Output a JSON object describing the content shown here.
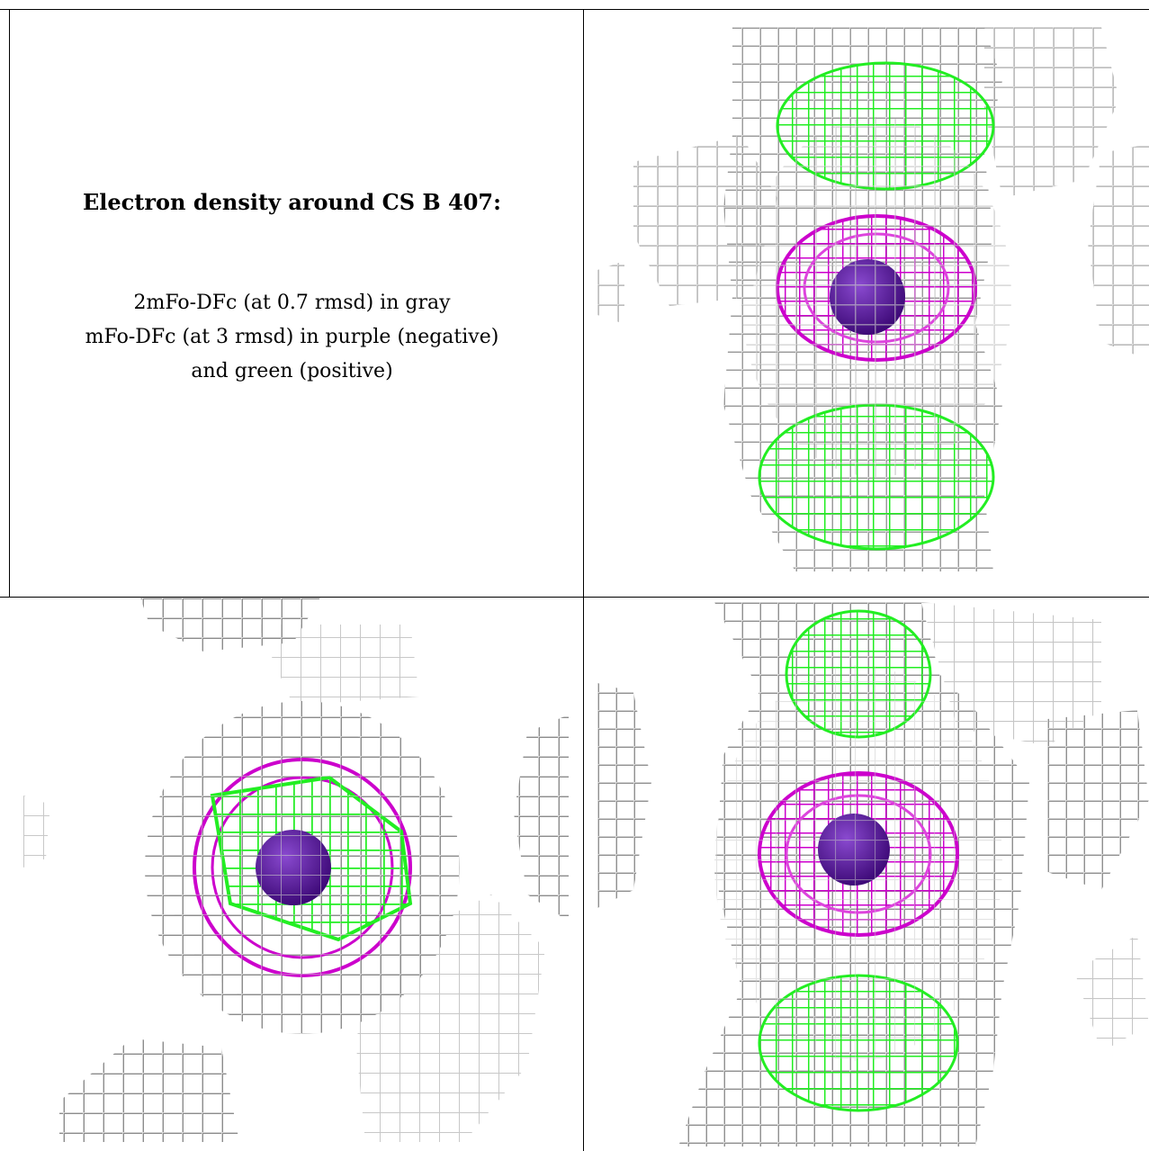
{
  "caption": {
    "title": "Electron density around CS B 407:",
    "line1": "2mFo-DFc (at 0.7 rmsd) in gray",
    "line2": "mFo-DFc (at 3 rmsd) in purple (negative)",
    "line3": "and green (positive)"
  },
  "legend_colors": {
    "map_2fo_fc": "#b4b4b4",
    "difference_negative": "#cc00cc",
    "difference_positive": "#22ee22",
    "atom": "#5a1a9a",
    "background": "#ffffff"
  },
  "panels": [
    {
      "id": "top-right",
      "view": "side view"
    },
    {
      "id": "bottom-left",
      "view": "top view"
    },
    {
      "id": "bottom-right",
      "view": "side view"
    }
  ]
}
